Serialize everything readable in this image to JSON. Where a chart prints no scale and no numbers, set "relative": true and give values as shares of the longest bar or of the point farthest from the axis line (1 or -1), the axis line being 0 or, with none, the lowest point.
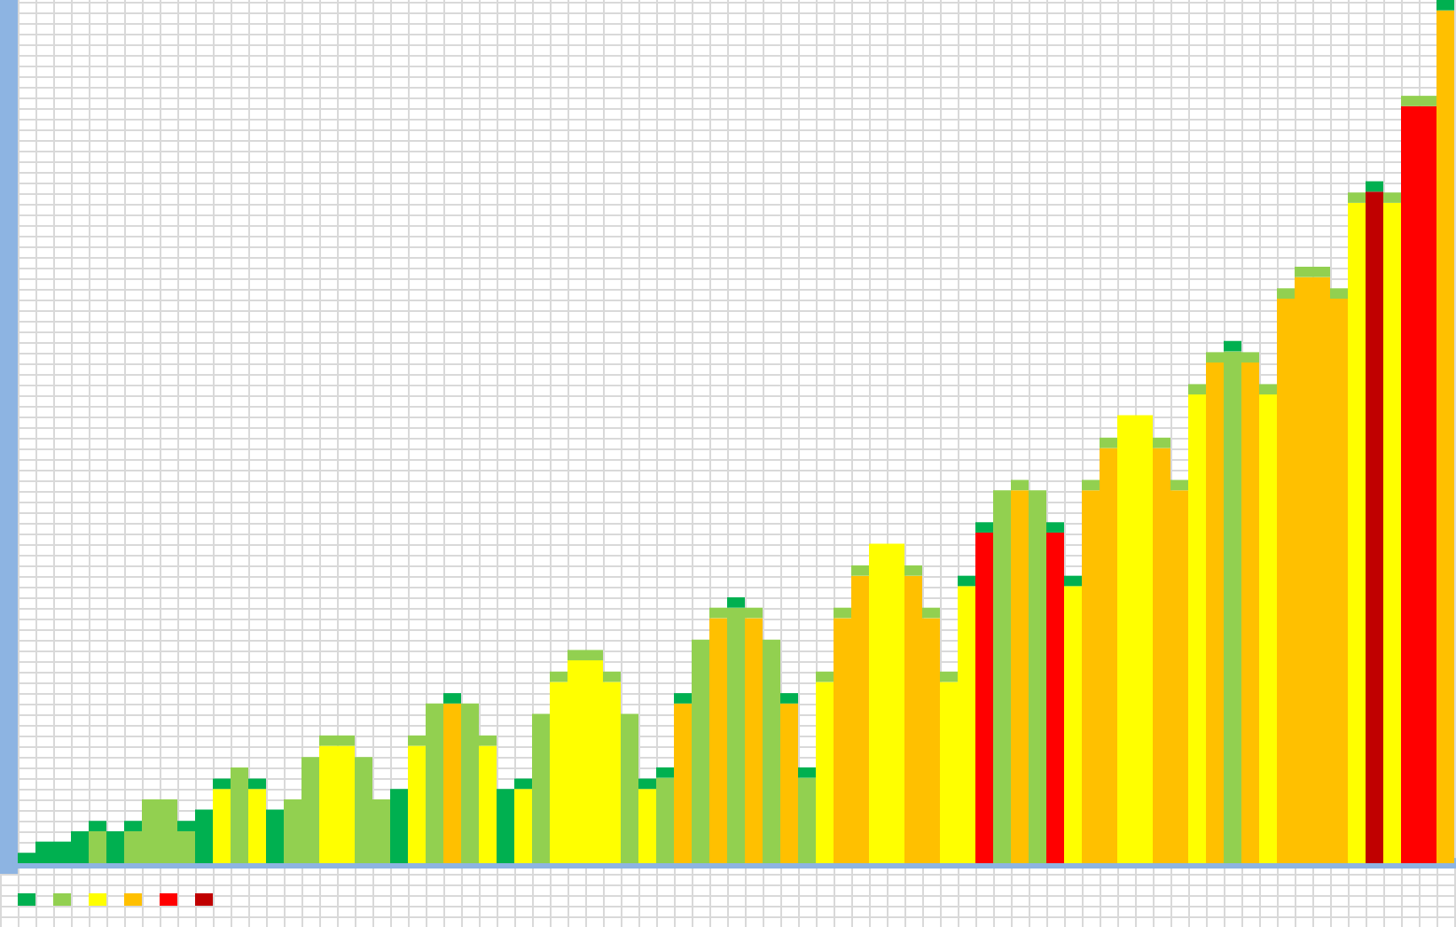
{
  "chart_data": {
    "type": "bar",
    "relative": true,
    "stacked": true,
    "categories": [
      null,
      null,
      null,
      null,
      null,
      null,
      null,
      null,
      null,
      null,
      null,
      null,
      null,
      null,
      null,
      null,
      null,
      null,
      null,
      null,
      null,
      null,
      null,
      null,
      null,
      null,
      null,
      null,
      null,
      null,
      null,
      null,
      null,
      null,
      null,
      null,
      null,
      null,
      null,
      null,
      null,
      null,
      null,
      null,
      null,
      null,
      null,
      null,
      null,
      null,
      null,
      null,
      null,
      null,
      null,
      null,
      null,
      null,
      null,
      null,
      null,
      null,
      null,
      null,
      null,
      null,
      null,
      null,
      null,
      null,
      null,
      null,
      null,
      null,
      null,
      null,
      null,
      null,
      null,
      null,
      null
    ],
    "series": [
      {
        "values": [
          0.012,
          0.025,
          0.025,
          0.037,
          0.037,
          0.037,
          0.037,
          0.074,
          0.074,
          0.037,
          0.062,
          0.086,
          0.111,
          0.086,
          0.062,
          0.074,
          0.123,
          0.136,
          0.136,
          0.123,
          0.074,
          0.086,
          0.136,
          0.185,
          0.185,
          0.185,
          0.136,
          0.086,
          0.086,
          0.173,
          0.21,
          0.235,
          0.235,
          0.21,
          0.173,
          0.086,
          0.099,
          0.185,
          0.259,
          0.284,
          0.296,
          0.284,
          0.259,
          0.185,
          0.099,
          0.21,
          0.284,
          0.333,
          0.37,
          0.37,
          0.333,
          0.284,
          0.21,
          0.321,
          0.383,
          0.432,
          0.432,
          0.432,
          0.383,
          0.321,
          0.432,
          0.481,
          0.519,
          0.519,
          0.481,
          0.432,
          0.543,
          0.58,
          0.593,
          0.58,
          0.543,
          0.654,
          0.679,
          0.679,
          0.654,
          0.765,
          0.778,
          0.765,
          0.877,
          0.877,
          0.988
        ],
        "colors": [
          "#00b050",
          "#00b050",
          "#00b050",
          "#00b050",
          "#92d050",
          "#00b050",
          "#92d050",
          "#92d050",
          "#92d050",
          "#92d050",
          "#00b050",
          "#ffff00",
          "#92d050",
          "#ffff00",
          "#00b050",
          "#92d050",
          "#92d050",
          "#ffff00",
          "#ffff00",
          "#92d050",
          "#92d050",
          "#00b050",
          "#ffff00",
          "#92d050",
          "#ffc000",
          "#92d050",
          "#ffff00",
          "#00b050",
          "#ffff00",
          "#92d050",
          "#ffff00",
          "#ffff00",
          "#ffff00",
          "#ffff00",
          "#92d050",
          "#ffff00",
          "#92d050",
          "#ffc000",
          "#92d050",
          "#ffc000",
          "#92d050",
          "#ffc000",
          "#92d050",
          "#ffc000",
          "#92d050",
          "#ffff00",
          "#ffc000",
          "#ffc000",
          "#ffff00",
          "#ffff00",
          "#ffc000",
          "#ffc000",
          "#ffff00",
          "#ffff00",
          "#ff0000",
          "#92d050",
          "#ffc000",
          "#92d050",
          "#ff0000",
          "#ffff00",
          "#ffc000",
          "#ffc000",
          "#ffff00",
          "#ffff00",
          "#ffc000",
          "#ffc000",
          "#ffff00",
          "#ffc000",
          "#92d050",
          "#ffc000",
          "#ffff00",
          "#ffc000",
          "#ffc000",
          "#ffc000",
          "#ffc000",
          "#ffff00",
          "#c00000",
          "#ffff00",
          "#ff0000",
          "#ff0000",
          "#ffc000"
        ]
      },
      {
        "values": [
          null,
          null,
          null,
          null,
          0.012,
          null,
          0.012,
          null,
          null,
          0.012,
          null,
          0.012,
          null,
          0.012,
          null,
          null,
          null,
          0.012,
          0.012,
          null,
          null,
          null,
          0.012,
          null,
          0.012,
          null,
          0.012,
          null,
          0.012,
          null,
          0.012,
          0.012,
          0.012,
          0.012,
          null,
          0.012,
          0.012,
          0.012,
          null,
          0.012,
          0.012,
          0.012,
          null,
          0.012,
          0.012,
          0.012,
          0.012,
          0.012,
          null,
          null,
          0.012,
          0.012,
          0.012,
          0.012,
          0.012,
          null,
          0.012,
          null,
          0.012,
          0.012,
          0.012,
          0.012,
          null,
          null,
          0.012,
          0.012,
          0.012,
          0.012,
          0.012,
          0.012,
          0.012,
          0.012,
          0.012,
          0.012,
          0.012,
          0.012,
          0.012,
          0.012,
          0.012,
          0.012,
          0.012
        ],
        "colors": [
          null,
          null,
          null,
          null,
          "#00b050",
          null,
          "#00b050",
          null,
          null,
          "#00b050",
          null,
          "#00b050",
          null,
          "#00b050",
          null,
          null,
          null,
          "#92d050",
          "#92d050",
          null,
          null,
          null,
          "#92d050",
          null,
          "#00b050",
          null,
          "#92d050",
          null,
          "#00b050",
          null,
          "#92d050",
          "#92d050",
          "#92d050",
          "#92d050",
          null,
          "#00b050",
          "#00b050",
          "#00b050",
          null,
          "#92d050",
          "#00b050",
          "#92d050",
          null,
          "#00b050",
          "#00b050",
          "#92d050",
          "#92d050",
          "#92d050",
          null,
          null,
          "#92d050",
          "#92d050",
          "#92d050",
          "#00b050",
          "#00b050",
          null,
          "#92d050",
          null,
          "#00b050",
          "#00b050",
          "#92d050",
          "#92d050",
          null,
          null,
          "#92d050",
          "#92d050",
          "#92d050",
          "#92d050",
          "#00b050",
          "#92d050",
          "#92d050",
          "#92d050",
          "#92d050",
          "#92d050",
          "#92d050",
          "#92d050",
          "#00b050",
          "#92d050",
          "#92d050",
          "#92d050",
          "#00b050"
        ]
      }
    ]
  }
}
